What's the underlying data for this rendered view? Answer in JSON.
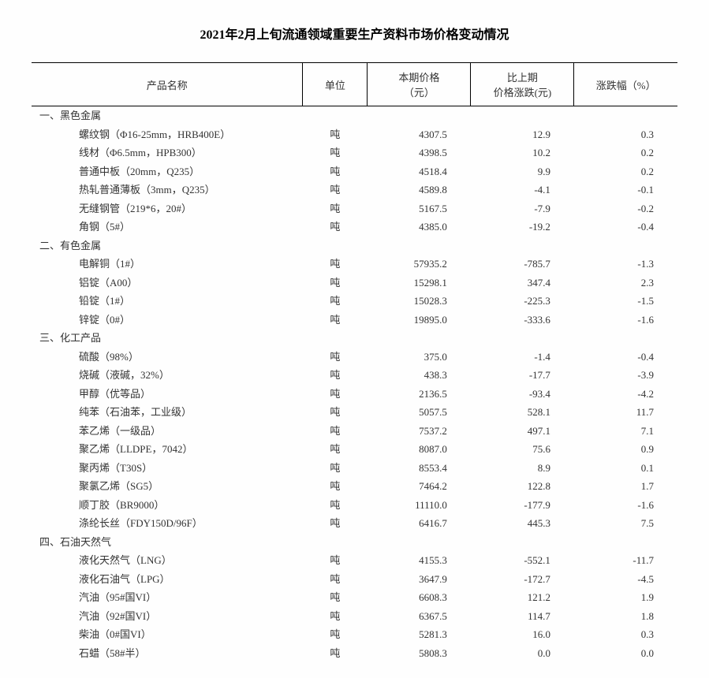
{
  "title": "2021年2月上旬流通领域重要生产资料市场价格变动情况",
  "headers": {
    "name": "产品名称",
    "unit": "单位",
    "price": "本期价格\n（元）",
    "change": "比上期\n价格涨跌(元)",
    "pct": "涨跌幅（%）"
  },
  "categories": [
    {
      "label": "一、黑色金属",
      "rows": [
        {
          "name": "螺纹钢（Φ16-25mm，HRB400E）",
          "unit": "吨",
          "price": "4307.5",
          "change": "12.9",
          "pct": "0.3"
        },
        {
          "name": "线材（Φ6.5mm，HPB300）",
          "unit": "吨",
          "price": "4398.5",
          "change": "10.2",
          "pct": "0.2"
        },
        {
          "name": "普通中板（20mm，Q235）",
          "unit": "吨",
          "price": "4518.4",
          "change": "9.9",
          "pct": "0.2"
        },
        {
          "name": "热轧普通薄板（3mm，Q235）",
          "unit": "吨",
          "price": "4589.8",
          "change": "-4.1",
          "pct": "-0.1"
        },
        {
          "name": "无缝钢管（219*6，20#）",
          "unit": "吨",
          "price": "5167.5",
          "change": "-7.9",
          "pct": "-0.2"
        },
        {
          "name": "角钢（5#）",
          "unit": "吨",
          "price": "4385.0",
          "change": "-19.2",
          "pct": "-0.4"
        }
      ]
    },
    {
      "label": "二、有色金属",
      "rows": [
        {
          "name": "电解铜（1#）",
          "unit": "吨",
          "price": "57935.2",
          "change": "-785.7",
          "pct": "-1.3"
        },
        {
          "name": "铝锭（A00）",
          "unit": "吨",
          "price": "15298.1",
          "change": "347.4",
          "pct": "2.3"
        },
        {
          "name": "铅锭（1#）",
          "unit": "吨",
          "price": "15028.3",
          "change": "-225.3",
          "pct": "-1.5"
        },
        {
          "name": "锌锭（0#）",
          "unit": "吨",
          "price": "19895.0",
          "change": "-333.6",
          "pct": "-1.6"
        }
      ]
    },
    {
      "label": "三、化工产品",
      "rows": [
        {
          "name": "硫酸（98%）",
          "unit": "吨",
          "price": "375.0",
          "change": "-1.4",
          "pct": "-0.4"
        },
        {
          "name": "烧碱（液碱，32%）",
          "unit": "吨",
          "price": "438.3",
          "change": "-17.7",
          "pct": "-3.9"
        },
        {
          "name": "甲醇（优等品）",
          "unit": "吨",
          "price": "2136.5",
          "change": "-93.4",
          "pct": "-4.2"
        },
        {
          "name": "纯苯（石油苯，工业级）",
          "unit": "吨",
          "price": "5057.5",
          "change": "528.1",
          "pct": "11.7"
        },
        {
          "name": "苯乙烯（一级品）",
          "unit": "吨",
          "price": "7537.2",
          "change": "497.1",
          "pct": "7.1"
        },
        {
          "name": "聚乙烯（LLDPE，7042）",
          "unit": "吨",
          "price": "8087.0",
          "change": "75.6",
          "pct": "0.9"
        },
        {
          "name": "聚丙烯（T30S）",
          "unit": "吨",
          "price": "8553.4",
          "change": "8.9",
          "pct": "0.1"
        },
        {
          "name": "聚氯乙烯（SG5）",
          "unit": "吨",
          "price": "7464.2",
          "change": "122.8",
          "pct": "1.7"
        },
        {
          "name": "顺丁胶（BR9000）",
          "unit": "吨",
          "price": "11110.0",
          "change": "-177.9",
          "pct": "-1.6"
        },
        {
          "name": "涤纶长丝（FDY150D/96F）",
          "unit": "吨",
          "price": "6416.7",
          "change": "445.3",
          "pct": "7.5"
        }
      ]
    },
    {
      "label": "四、石油天然气",
      "rows": [
        {
          "name": "液化天然气（LNG）",
          "unit": "吨",
          "price": "4155.3",
          "change": "-552.1",
          "pct": "-11.7"
        },
        {
          "name": "液化石油气（LPG）",
          "unit": "吨",
          "price": "3647.9",
          "change": "-172.7",
          "pct": "-4.5"
        },
        {
          "name": "汽油（95#国VI）",
          "unit": "吨",
          "price": "6608.3",
          "change": "121.2",
          "pct": "1.9"
        },
        {
          "name": "汽油（92#国VI）",
          "unit": "吨",
          "price": "6367.5",
          "change": "114.7",
          "pct": "1.8"
        },
        {
          "name": "柴油（0#国VI）",
          "unit": "吨",
          "price": "5281.3",
          "change": "16.0",
          "pct": "0.3"
        },
        {
          "name": "石蜡（58#半）",
          "unit": "吨",
          "price": "5808.3",
          "change": "0.0",
          "pct": "0.0"
        }
      ]
    }
  ]
}
